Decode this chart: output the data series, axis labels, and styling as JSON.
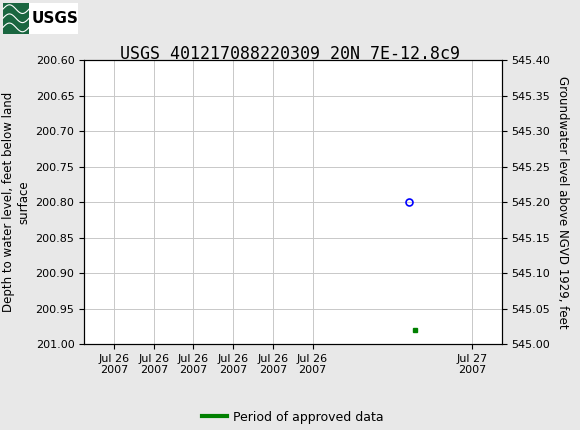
{
  "title": "USGS 401217088220309 20N 7E-12.8c9",
  "ylabel_left": "Depth to water level, feet below land\nsurface",
  "ylabel_right": "Groundwater level above NGVD 1929, feet",
  "ylim_left": [
    200.6,
    201.0
  ],
  "ylim_right": [
    545.0,
    545.4
  ],
  "yticks_left": [
    200.6,
    200.65,
    200.7,
    200.75,
    200.8,
    200.85,
    200.9,
    200.95,
    201.0
  ],
  "yticks_right": [
    545.4,
    545.35,
    545.3,
    545.25,
    545.2,
    545.15,
    545.1,
    545.05,
    545.0
  ],
  "data_blue_x": 5.45,
  "data_blue_y": 200.8,
  "data_green_x": 5.55,
  "data_green_y": 200.98,
  "xlim": [
    0,
    7
  ],
  "xtick_labels": [
    "Jul 26\n2007",
    "Jul 26\n2007",
    "Jul 26\n2007",
    "Jul 26\n2007",
    "Jul 26\n2007",
    "Jul 26\n2007",
    "Jul 27\n2007"
  ],
  "xtick_positions": [
    0.5,
    1.17,
    1.83,
    2.5,
    3.17,
    3.83,
    6.5
  ],
  "header_color": "#1a6640",
  "bg_color": "#e8e8e8",
  "plot_bg_color": "#ffffff",
  "grid_color": "#c8c8c8",
  "legend_label": "Period of approved data",
  "legend_color": "#008000",
  "title_fontsize": 12,
  "axis_fontsize": 8.5,
  "tick_fontsize": 8
}
